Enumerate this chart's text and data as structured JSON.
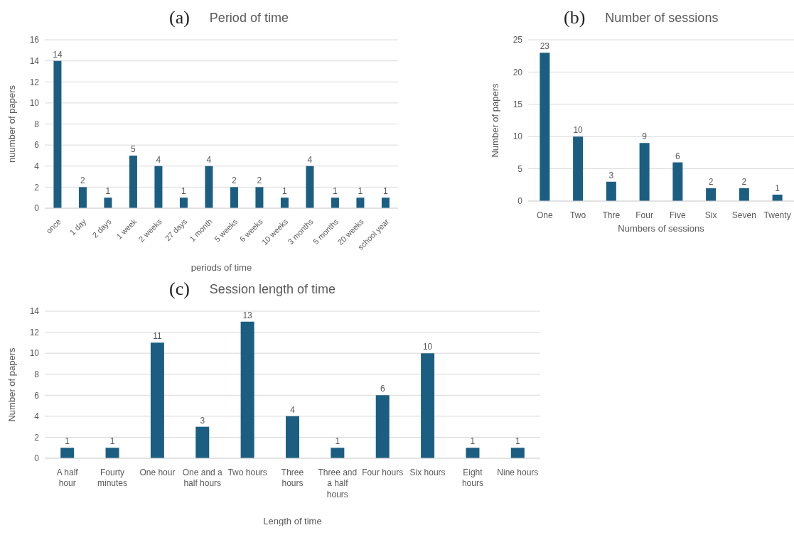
{
  "chart_data": [
    {
      "type": "bar",
      "title": "Period of time",
      "xlabel": "periods of time",
      "ylabel": "nuumber of papers",
      "annotations": [
        "(a)"
      ],
      "categories": [
        "once",
        "1 day",
        "2 days",
        "1 week",
        "2 weeks",
        "27 days",
        "1 month",
        "5 weeks",
        "6 weeks",
        "10 weeks",
        "3 months",
        "5 months",
        "20 weeks",
        "school year"
      ],
      "values": [
        14,
        2,
        1,
        5,
        4,
        1,
        4,
        2,
        2,
        1,
        4,
        1,
        1,
        1
      ],
      "color": "#1b5e82",
      "ylim": [
        0,
        16
      ],
      "yticks": [
        0,
        2,
        4,
        6,
        8,
        10,
        12,
        14,
        16
      ],
      "grid": "y",
      "data_labels": true
    },
    {
      "type": "bar",
      "title": "Number of sessions",
      "xlabel": "Numbers of sessions",
      "ylabel": "Number of papers",
      "annotations": [
        "(b)"
      ],
      "categories": [
        "One",
        "Two",
        "Thre",
        "Four",
        "Five",
        "Six",
        "Seven",
        "Twenty"
      ],
      "values": [
        23,
        10,
        3,
        9,
        6,
        2,
        2,
        1
      ],
      "color": "#1b5e82",
      "ylim": [
        0,
        25
      ],
      "yticks": [
        0,
        5,
        10,
        15,
        20,
        25
      ],
      "grid": "y",
      "data_labels": true
    },
    {
      "type": "bar",
      "title": "Session length of time",
      "xlabel": "Length of time",
      "ylabel": "Number of papers",
      "annotations": [
        "(c)"
      ],
      "categories": [
        "A half hour",
        "Fourty minutes",
        "One hour",
        "One and a half hours",
        "Two hours",
        "Three hours",
        "Three and a half hours",
        "Four hours",
        "Six hours",
        "Eight hours",
        "Nine hours"
      ],
      "values": [
        1,
        1,
        11,
        3,
        13,
        4,
        1,
        6,
        10,
        1,
        1
      ],
      "color": "#1b5e82",
      "ylim": [
        0,
        14
      ],
      "yticks": [
        0,
        2,
        4,
        6,
        8,
        10,
        12,
        14
      ],
      "grid": "y",
      "data_labels": true
    }
  ]
}
